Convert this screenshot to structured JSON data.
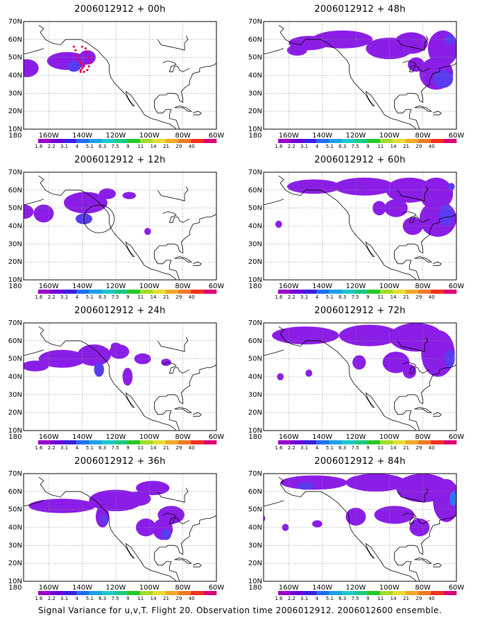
{
  "figure": {
    "caption": "Signal Variance for u,v,T. Flight 20. Observation time 2006012912. 2006012600 ensemble."
  },
  "chart_data": [
    {
      "type": "heatmap",
      "title": "2006012912 + 00h"
    },
    {
      "type": "heatmap",
      "title": "2006012912 + 48h"
    },
    {
      "type": "heatmap",
      "title": "2006012912 + 12h"
    },
    {
      "type": "heatmap",
      "title": "2006012912 + 60h"
    },
    {
      "type": "heatmap",
      "title": "2006012912 + 24h"
    },
    {
      "type": "heatmap",
      "title": "2006012912 + 72h"
    },
    {
      "type": "heatmap",
      "title": "2006012912 + 36h"
    },
    {
      "type": "heatmap",
      "title": "2006012912 + 84h"
    }
  ],
  "axes": {
    "lon_ticks": [
      "180",
      "160W",
      "140W",
      "120W",
      "100W",
      "80W",
      "60W"
    ],
    "lon_values": [
      180,
      160,
      140,
      120,
      100,
      80,
      60
    ],
    "lat_ticks": [
      "70N",
      "60N",
      "50N",
      "40N",
      "30N",
      "20N",
      "10N"
    ],
    "lat_values": [
      70,
      60,
      50,
      40,
      30,
      20,
      10
    ],
    "lon_range": [
      -175,
      -60
    ],
    "lat_range": [
      10,
      70
    ],
    "grid": "dotted"
  },
  "colorbar": {
    "labels": [
      "1.6",
      "2.2",
      "3.1",
      "4",
      "5.1",
      "6.3",
      "7.5",
      "9",
      "11",
      "14",
      "21",
      "29",
      "40"
    ],
    "colors": [
      "#9a00c8",
      "#6e00d8",
      "#3c1ee0",
      "#1e6ef0",
      "#1ea0e6",
      "#1ec8c8",
      "#1ec882",
      "#28c828",
      "#a0dc28",
      "#e6dc32",
      "#f0aa28",
      "#f07828",
      "#ee3020",
      "#d80078"
    ]
  },
  "field_colors": {
    "low": "#8b1ee6",
    "mid": "#5a3cf0",
    "high": "#2a78f0"
  },
  "annotation_colors": {
    "flight_track": "#e8004c",
    "circle": "#000000"
  }
}
